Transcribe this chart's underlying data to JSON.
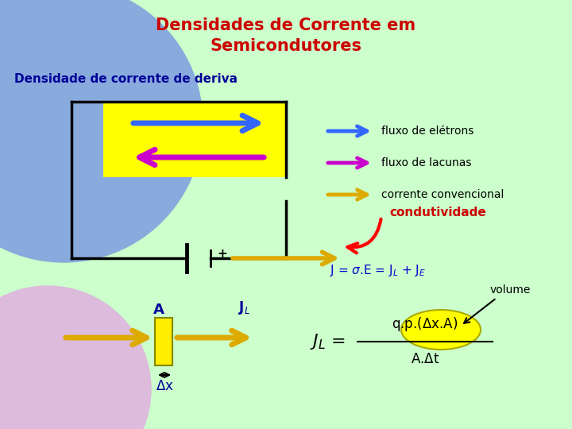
{
  "title_line1": "Densidades de Corrente em",
  "title_line2": "Semicondutores",
  "title_color": "#cc0000",
  "title_fontsize": 15,
  "subtitle": "Densidade de corrente de deriva",
  "subtitle_color": "#000099",
  "subtitle_fontsize": 11,
  "bg_color": "#ccffcc",
  "bg_circle_color": "#88aadd",
  "bg_circle2_color": "#ddbbdd",
  "yellow_color": "#ffff00",
  "blue_arrow_color": "#3366ff",
  "magenta_arrow_color": "#cc00cc",
  "gold_arrow_color": "#ddaa00",
  "legend_texts": [
    "fluxo de elétrons",
    "fluxo de lacunas",
    "corrente convencional"
  ],
  "legend_text_color": "#000000",
  "legend_fontsize": 10,
  "condutividade_text": "condutividade",
  "condutividade_color": "#cc0000",
  "formula_color": "#0000cc",
  "volume_text": "volume",
  "volume_color": "#000000"
}
